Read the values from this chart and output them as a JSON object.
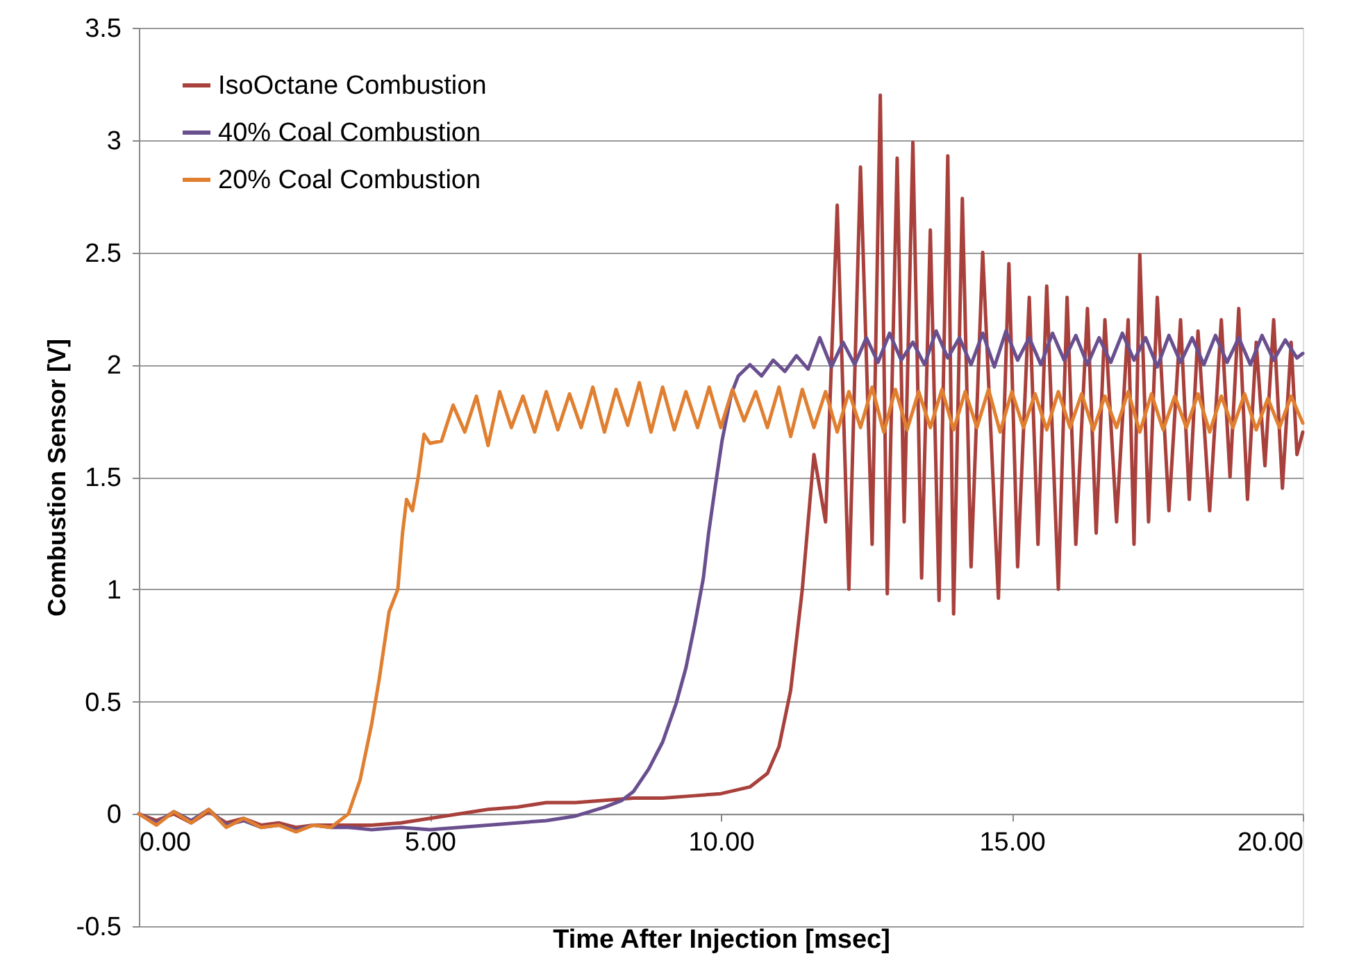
{
  "chart_data": {
    "type": "line",
    "xlabel": "Time After Injection [msec]",
    "ylabel": "Combustion Sensor [V]",
    "xlim": [
      0,
      20
    ],
    "xticks": [
      {
        "value": 0,
        "label": "0.00"
      },
      {
        "value": 5,
        "label": "5.00"
      },
      {
        "value": 10,
        "label": "10.00"
      },
      {
        "value": 15,
        "label": "15.00"
      },
      {
        "value": 20,
        "label": "20.00"
      }
    ],
    "ylim": [
      -0.5,
      3.5
    ],
    "yticks": [
      -0.5,
      0,
      0.5,
      1,
      1.5,
      2,
      2.5,
      3,
      3.5
    ],
    "grid": "y",
    "legend": "top left",
    "line_style": "solid",
    "marker": "none",
    "series": [
      {
        "name": "IsoOctane Combustion",
        "color": "#a8403c",
        "x": [
          0,
          0.3,
          0.6,
          0.9,
          1.2,
          1.5,
          1.8,
          2.1,
          2.4,
          2.7,
          3.0,
          3.3,
          3.6,
          4.0,
          4.5,
          5.0,
          5.5,
          6.0,
          6.5,
          7.0,
          7.5,
          8.0,
          8.5,
          9.0,
          9.5,
          10.0,
          10.5,
          10.8,
          11.0,
          11.2,
          11.4,
          11.6,
          11.8,
          12.0,
          12.2,
          12.4,
          12.6,
          12.74,
          12.86,
          13.03,
          13.15,
          13.3,
          13.45,
          13.6,
          13.75,
          13.9,
          14.0,
          14.15,
          14.3,
          14.5,
          14.77,
          14.95,
          15.1,
          15.3,
          15.45,
          15.6,
          15.8,
          15.95,
          16.1,
          16.3,
          16.45,
          16.6,
          16.8,
          17.0,
          17.1,
          17.2,
          17.35,
          17.5,
          17.7,
          17.9,
          18.05,
          18.2,
          18.4,
          18.6,
          18.75,
          18.9,
          19.05,
          19.2,
          19.35,
          19.5,
          19.65,
          19.8,
          19.9,
          20.0
        ],
        "values": [
          0.0,
          -0.03,
          0.0,
          -0.04,
          0.01,
          -0.04,
          -0.02,
          -0.05,
          -0.04,
          -0.06,
          -0.05,
          -0.05,
          -0.05,
          -0.05,
          -0.04,
          -0.02,
          0.0,
          0.02,
          0.03,
          0.05,
          0.05,
          0.06,
          0.07,
          0.07,
          0.08,
          0.09,
          0.12,
          0.18,
          0.3,
          0.55,
          1.0,
          1.6,
          1.3,
          2.71,
          1.0,
          2.88,
          1.2,
          3.2,
          0.98,
          2.92,
          1.3,
          2.99,
          1.05,
          2.6,
          0.95,
          2.93,
          0.89,
          2.74,
          1.1,
          2.5,
          0.96,
          2.45,
          1.1,
          2.3,
          1.2,
          2.35,
          1.0,
          2.3,
          1.2,
          2.25,
          1.25,
          2.2,
          1.3,
          2.2,
          1.2,
          2.49,
          1.3,
          2.3,
          1.35,
          2.2,
          1.4,
          2.15,
          1.35,
          2.2,
          1.5,
          2.25,
          1.4,
          2.1,
          1.55,
          2.2,
          1.45,
          2.1,
          1.6,
          1.7
        ]
      },
      {
        "name": "40% Coal Combustion",
        "color": "#6a4f8f",
        "x": [
          0,
          0.3,
          0.6,
          0.9,
          1.2,
          1.5,
          1.8,
          2.1,
          2.4,
          2.7,
          3.0,
          3.3,
          3.6,
          4.0,
          4.5,
          5.0,
          5.5,
          6.0,
          6.5,
          7.0,
          7.5,
          8.0,
          8.3,
          8.5,
          8.76,
          9.0,
          9.23,
          9.4,
          9.55,
          9.7,
          9.79,
          9.9,
          10.02,
          10.18,
          10.3,
          10.5,
          10.7,
          10.9,
          11.1,
          11.3,
          11.5,
          11.7,
          11.9,
          12.1,
          12.3,
          12.5,
          12.7,
          12.9,
          13.1,
          13.3,
          13.5,
          13.7,
          13.9,
          14.1,
          14.3,
          14.5,
          14.7,
          14.9,
          15.1,
          15.3,
          15.5,
          15.7,
          15.9,
          16.1,
          16.3,
          16.5,
          16.7,
          16.9,
          17.1,
          17.3,
          17.5,
          17.7,
          17.9,
          18.1,
          18.3,
          18.5,
          18.7,
          18.9,
          19.1,
          19.3,
          19.5,
          19.7,
          19.9,
          20.0
        ],
        "values": [
          0.0,
          -0.04,
          0.01,
          -0.03,
          0.02,
          -0.05,
          -0.03,
          -0.06,
          -0.05,
          -0.07,
          -0.05,
          -0.06,
          -0.06,
          -0.07,
          -0.06,
          -0.07,
          -0.06,
          -0.05,
          -0.04,
          -0.03,
          -0.01,
          0.03,
          0.06,
          0.1,
          0.2,
          0.32,
          0.49,
          0.65,
          0.84,
          1.05,
          1.25,
          1.45,
          1.66,
          1.87,
          1.95,
          2.0,
          1.95,
          2.02,
          1.97,
          2.04,
          1.98,
          2.12,
          1.99,
          2.1,
          2.0,
          2.12,
          2.01,
          2.14,
          2.02,
          2.1,
          2.0,
          2.15,
          2.03,
          2.12,
          2.0,
          2.14,
          1.99,
          2.15,
          2.02,
          2.12,
          2.0,
          2.14,
          2.02,
          2.13,
          2.0,
          2.12,
          2.01,
          2.14,
          2.02,
          2.12,
          1.99,
          2.13,
          2.01,
          2.12,
          2.0,
          2.13,
          2.01,
          2.12,
          2.0,
          2.13,
          2.02,
          2.11,
          2.03,
          2.05
        ]
      },
      {
        "name": "20% Coal Combustion",
        "color": "#e07f30",
        "x": [
          0,
          0.3,
          0.6,
          0.9,
          1.2,
          1.5,
          1.8,
          2.1,
          2.4,
          2.7,
          3.0,
          3.3,
          3.6,
          3.8,
          4.0,
          4.13,
          4.3,
          4.45,
          4.53,
          4.6,
          4.7,
          4.8,
          4.9,
          5.0,
          5.2,
          5.4,
          5.6,
          5.8,
          6.0,
          6.2,
          6.4,
          6.6,
          6.8,
          7.0,
          7.2,
          7.4,
          7.6,
          7.8,
          8.0,
          8.2,
          8.4,
          8.6,
          8.8,
          9.0,
          9.2,
          9.4,
          9.6,
          9.8,
          10.0,
          10.2,
          10.4,
          10.6,
          10.8,
          11.0,
          11.2,
          11.4,
          11.6,
          11.8,
          12.0,
          12.2,
          12.4,
          12.6,
          12.8,
          13.0,
          13.2,
          13.4,
          13.6,
          13.8,
          14.0,
          14.2,
          14.4,
          14.6,
          14.8,
          15.0,
          15.2,
          15.4,
          15.6,
          15.8,
          16.0,
          16.2,
          16.4,
          16.6,
          16.8,
          17.0,
          17.2,
          17.4,
          17.6,
          17.8,
          18.0,
          18.2,
          18.4,
          18.6,
          18.8,
          19.0,
          19.2,
          19.4,
          19.6,
          19.8,
          20.0
        ],
        "values": [
          0.0,
          -0.05,
          0.01,
          -0.04,
          0.02,
          -0.06,
          -0.02,
          -0.06,
          -0.05,
          -0.08,
          -0.05,
          -0.06,
          0.0,
          0.15,
          0.4,
          0.6,
          0.9,
          1.0,
          1.25,
          1.4,
          1.35,
          1.5,
          1.69,
          1.65,
          1.66,
          1.82,
          1.7,
          1.86,
          1.64,
          1.88,
          1.72,
          1.86,
          1.7,
          1.88,
          1.71,
          1.87,
          1.72,
          1.9,
          1.7,
          1.89,
          1.73,
          1.92,
          1.7,
          1.9,
          1.71,
          1.88,
          1.72,
          1.9,
          1.72,
          1.89,
          1.75,
          1.88,
          1.72,
          1.9,
          1.68,
          1.89,
          1.72,
          1.88,
          1.7,
          1.88,
          1.72,
          1.9,
          1.7,
          1.89,
          1.71,
          1.88,
          1.72,
          1.89,
          1.71,
          1.88,
          1.72,
          1.89,
          1.7,
          1.88,
          1.72,
          1.87,
          1.71,
          1.88,
          1.72,
          1.87,
          1.71,
          1.86,
          1.72,
          1.88,
          1.7,
          1.87,
          1.71,
          1.86,
          1.72,
          1.87,
          1.7,
          1.86,
          1.72,
          1.87,
          1.71,
          1.85,
          1.72,
          1.86,
          1.74
        ]
      }
    ]
  }
}
